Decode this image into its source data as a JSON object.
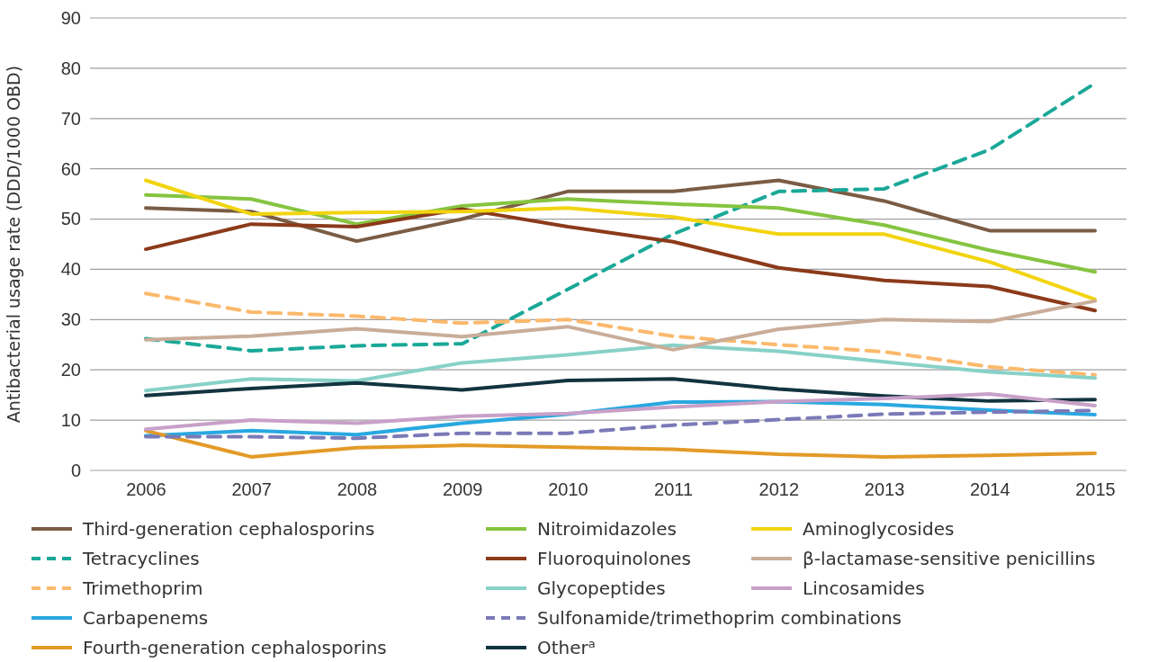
{
  "chart_data": {
    "type": "line",
    "ylabel": "Antibacterial usage rate (DDD/1000 OBD)",
    "categories": [
      "2006",
      "2007",
      "2008",
      "2009",
      "2010",
      "2011",
      "2012",
      "2013",
      "2014",
      "2015"
    ],
    "ylim": [
      0,
      90
    ],
    "yticks": [
      0,
      10,
      20,
      30,
      40,
      50,
      60,
      70,
      80,
      90
    ],
    "grid": "y",
    "legend": "bottom",
    "marker": "none",
    "series": [
      {
        "name": "Third-generation cephalosporins",
        "color": "#7a5c45",
        "line_style": "solid",
        "values": [
          52.2,
          51.5,
          45.6,
          50,
          55.5,
          55.5,
          57.7,
          53.6,
          47.7,
          47.7
        ]
      },
      {
        "name": "Tetracyclines",
        "color": "#1aa898",
        "line_style": "dashed",
        "values": [
          26.2,
          23.8,
          24.8,
          25.2,
          36,
          47,
          55.5,
          56,
          63.8,
          77
        ]
      },
      {
        "name": "Trimethoprim",
        "color": "#fbb96c",
        "line_style": "dashed",
        "values": [
          35.2,
          31.5,
          30.7,
          29.3,
          30,
          26.7,
          25,
          23.6,
          20.6,
          19
        ]
      },
      {
        "name": "Carbapenems",
        "color": "#29a8e0",
        "line_style": "solid",
        "values": [
          6.9,
          7.9,
          7.1,
          9.4,
          11.2,
          13.6,
          13.7,
          13.1,
          12,
          11.1
        ]
      },
      {
        "name": "Fourth-generation cephalosporins",
        "color": "#e39a27",
        "line_style": "solid",
        "values": [
          7.9,
          2.7,
          4.5,
          5,
          4.6,
          4.2,
          3.2,
          2.7,
          3,
          3.4
        ]
      },
      {
        "name": "Nitroimidazoles",
        "color": "#86c440",
        "line_style": "solid",
        "values": [
          54.8,
          54,
          49,
          52.6,
          54,
          53,
          52.2,
          48.8,
          43.8,
          39.5
        ]
      },
      {
        "name": "Fluoroquinolones",
        "color": "#8b3a1a",
        "line_style": "solid",
        "values": [
          44,
          49,
          48.5,
          52,
          48.5,
          45.5,
          40.3,
          37.8,
          36.6,
          31.8
        ]
      },
      {
        "name": "Glycopeptides",
        "color": "#88d1c7",
        "line_style": "solid",
        "values": [
          15.9,
          18.2,
          17.8,
          21.4,
          23,
          24.9,
          23.7,
          21.6,
          19.6,
          18.4
        ]
      },
      {
        "name": "Sulfonamide/trimethoprim combinations",
        "color": "#7a7ab8",
        "line_style": "dashed",
        "values": [
          6.7,
          6.7,
          6.4,
          7.4,
          7.4,
          9,
          10.1,
          11.2,
          11.6,
          11.9
        ]
      },
      {
        "name": "Other$^{a}$",
        "color": "#12343f",
        "line_style": "solid",
        "values": [
          14.9,
          16.3,
          17.4,
          16,
          17.9,
          18.2,
          16.2,
          14.8,
          13.8,
          14.1
        ]
      },
      {
        "name": "Aminoglycosides",
        "color": "#f2d40f",
        "line_style": "solid",
        "values": [
          57.7,
          51,
          51.3,
          51.5,
          52.2,
          50.4,
          47,
          47,
          41.5,
          34
        ]
      },
      {
        "name": "β-lactamase-sensitive penicillins",
        "color": "#c9ad99",
        "line_style": "solid",
        "values": [
          26,
          26.7,
          28.2,
          26.6,
          28.6,
          24,
          28.1,
          30,
          29.6,
          33.7
        ]
      },
      {
        "name": "Lincosamides",
        "color": "#c8a0c8",
        "line_style": "solid",
        "values": [
          8.2,
          10,
          9.4,
          10.8,
          11.3,
          12.6,
          13.7,
          14.3,
          15.2,
          12.9
        ]
      }
    ]
  }
}
